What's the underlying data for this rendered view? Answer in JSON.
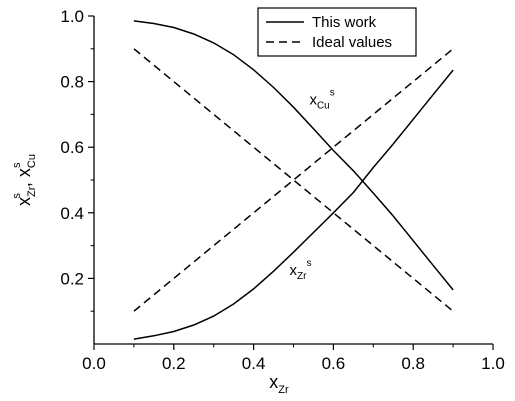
{
  "chart_data": {
    "type": "line",
    "xlim": [
      0.0,
      1.0
    ],
    "ylim": [
      0.0,
      1.0
    ],
    "x_ticks": [
      "0.0",
      "0.2",
      "0.4",
      "0.6",
      "0.8",
      "1.0"
    ],
    "y_ticks": [
      "0.2",
      "0.4",
      "0.6",
      "0.8",
      "1.0"
    ],
    "x_tick_values": [
      0.0,
      0.2,
      0.4,
      0.6,
      0.8,
      1.0
    ],
    "y_tick_values": [
      0.2,
      0.4,
      0.6,
      0.8,
      1.0
    ],
    "xlabel": {
      "main": "x",
      "sub": "Zr"
    },
    "ylabel": {
      "main1": "x",
      "sub1": "Zr",
      "sup1": "s",
      "sep": ", ",
      "main2": "x",
      "sub2": "Cu",
      "sup2": "s"
    },
    "grid": false,
    "legend_position": "top-right",
    "series": [
      {
        "name": "This work",
        "style": "solid",
        "x": [
          0.1,
          0.15,
          0.2,
          0.25,
          0.3,
          0.35,
          0.4,
          0.45,
          0.5,
          0.55,
          0.6,
          0.65,
          0.7,
          0.75,
          0.8,
          0.85,
          0.9
        ],
        "y": [
          0.985,
          0.977,
          0.965,
          0.945,
          0.918,
          0.882,
          0.836,
          0.782,
          0.722,
          0.656,
          0.59,
          0.528,
          0.46,
          0.39,
          0.315,
          0.24,
          0.165
        ]
      },
      {
        "name": "This work",
        "style": "solid",
        "x": [
          0.1,
          0.15,
          0.2,
          0.25,
          0.3,
          0.35,
          0.4,
          0.45,
          0.5,
          0.55,
          0.6,
          0.65,
          0.7,
          0.75,
          0.8,
          0.85,
          0.9
        ],
        "y": [
          0.015,
          0.025,
          0.038,
          0.058,
          0.085,
          0.122,
          0.168,
          0.222,
          0.28,
          0.34,
          0.4,
          0.462,
          0.538,
          0.61,
          0.685,
          0.76,
          0.835
        ]
      },
      {
        "name": "Ideal values",
        "style": "dashed",
        "x": [
          0.1,
          0.9
        ],
        "y": [
          0.9,
          0.1
        ]
      },
      {
        "name": "Ideal values",
        "style": "dashed",
        "x": [
          0.1,
          0.9
        ],
        "y": [
          0.1,
          0.9
        ]
      }
    ],
    "annotations": [
      {
        "main": "x",
        "sub": "Cu",
        "sup": "s",
        "x": 0.54,
        "y": 0.73
      },
      {
        "main": "x",
        "sub": "Zr",
        "sup": "s",
        "x": 0.49,
        "y": 0.21
      }
    ],
    "legend": [
      {
        "label": "This work",
        "style": "solid"
      },
      {
        "label": "Ideal values",
        "style": "dashed"
      }
    ]
  }
}
